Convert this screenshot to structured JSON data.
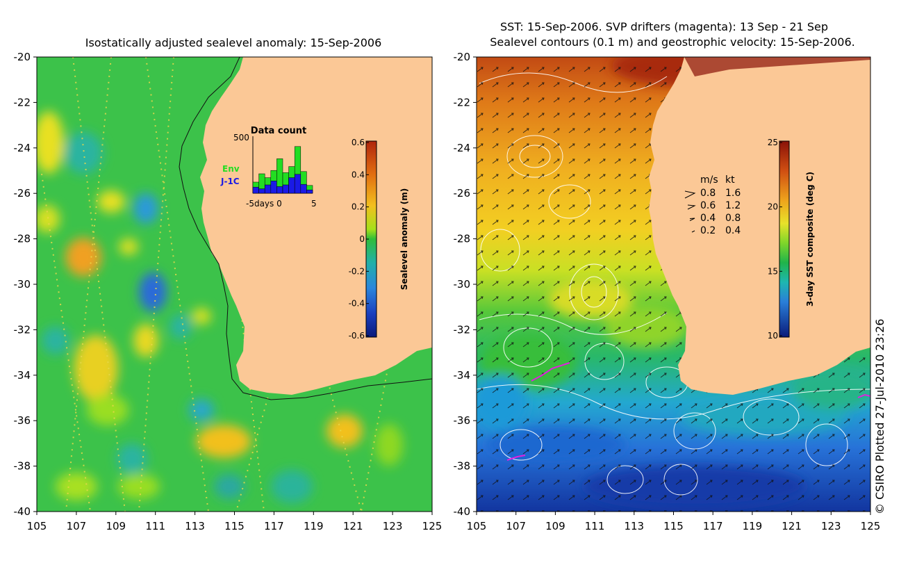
{
  "left_panel": {
    "title": "Isostatically adjusted sealevel anomaly: 15-Sep-2006",
    "x_ticks": [
      "105",
      "107",
      "109",
      "111",
      "113",
      "115",
      "117",
      "119",
      "121",
      "123",
      "125"
    ],
    "y_ticks": [
      "-20",
      "-22",
      "-24",
      "-26",
      "-28",
      "-30",
      "-32",
      "-34",
      "-36",
      "-38",
      "-40"
    ],
    "colorbar": {
      "label": "Sealevel anomaly (m)",
      "ticks": [
        "0.6",
        "0.4",
        "0.2",
        "0",
        "-0.2",
        "-0.4",
        "-0.6"
      ]
    },
    "inset": {
      "title": "Data count",
      "y_max_label": "500",
      "x_label": "-5days 0",
      "x_right_label": "5",
      "legend_env": "Env",
      "legend_j1c": "J-1C",
      "env_color": "#22dd22",
      "j1c_color": "#1a1ae6"
    },
    "chart_data": {
      "type": "bar",
      "title": "Data count",
      "categories": [
        "-5",
        "-4",
        "-3",
        "-2",
        "-1",
        "0",
        "1",
        "2",
        "3",
        "4"
      ],
      "series": [
        {
          "name": "Env",
          "values": [
            100,
            175,
            140,
            205,
            310,
            185,
            240,
            420,
            195,
            70
          ]
        },
        {
          "name": "J-1C",
          "values": [
            55,
            40,
            75,
            110,
            60,
            75,
            140,
            170,
            80,
            30
          ]
        }
      ],
      "ylim": [
        0,
        500
      ],
      "xlabel": "days"
    }
  },
  "right_panel": {
    "title_line1": "SST: 15-Sep-2006. SVP drifters (magenta): 13 Sep - 21 Sep",
    "title_line2": "Sealevel contours (0.1 m) and geostrophic velocity: 15-Sep-2006.",
    "x_ticks": [
      "105",
      "107",
      "109",
      "111",
      "113",
      "115",
      "117",
      "119",
      "121",
      "123",
      "125"
    ],
    "y_ticks": [
      "-20",
      "-22",
      "-24",
      "-26",
      "-28",
      "-30",
      "-32",
      "-34",
      "-36",
      "-38",
      "-40"
    ],
    "colorbar": {
      "label": "3-day SST composite (deg C)",
      "ticks": [
        "25",
        "20",
        "15",
        "10"
      ]
    },
    "speed_legend": {
      "header_ms": "m/s",
      "header_kt": "kt",
      "rows": [
        {
          "ms": "0.8",
          "kt": "1.6"
        },
        {
          "ms": "0.6",
          "kt": "1.2"
        },
        {
          "ms": "0.4",
          "kt": "0.8"
        },
        {
          "ms": "0.2",
          "kt": "0.4"
        }
      ]
    }
  },
  "credit": "© CSIRO Plotted 27-Jul-2010 23:26",
  "colors": {
    "land": "#fbc896",
    "ocean_green": "#3cc24a",
    "drifter": "#e020e0"
  }
}
